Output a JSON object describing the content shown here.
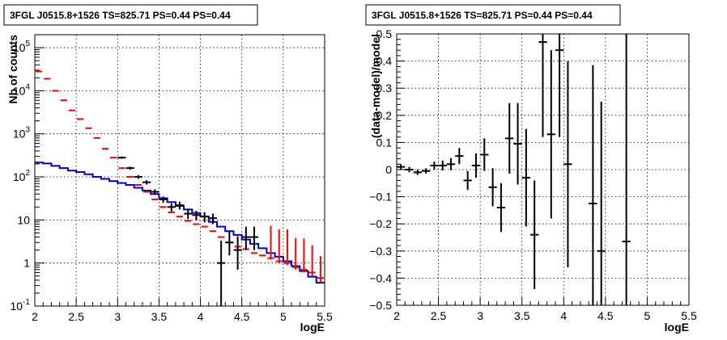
{
  "chart_data": [
    {
      "type": "line",
      "title": "3FGL J0515.8+1526 TS=825.71 PS=0.44 PS=0.44",
      "xlabel": "logE",
      "ylabel": "Nb of counts",
      "xlim": [
        2,
        5.5
      ],
      "ylim": [
        0.1,
        200000
      ],
      "ylog": true,
      "grid": true,
      "x_ticks": [
        "2",
        "2.5",
        "3",
        "3.5",
        "4",
        "4.5",
        "5",
        "5.5"
      ],
      "y_ticks": [
        {
          "v": 0.1,
          "base": "10",
          "exp": "-1"
        },
        {
          "v": 1,
          "base": "1",
          "exp": ""
        },
        {
          "v": 10,
          "base": "10",
          "exp": ""
        },
        {
          "v": 100,
          "base": "10",
          "exp": "2"
        },
        {
          "v": 1000,
          "base": "10",
          "exp": "3"
        },
        {
          "v": 10000,
          "base": "10",
          "exp": "4"
        },
        {
          "v": 100000,
          "base": "10",
          "exp": "5"
        }
      ],
      "bin_width": 0.1,
      "series": [
        {
          "style": "model-total",
          "color": "#ff0000",
          "x": [
            2.05,
            2.15,
            2.25,
            2.35,
            2.45,
            2.55,
            2.65,
            2.75,
            2.85,
            2.95,
            3.05,
            3.15,
            3.25,
            3.35,
            3.45,
            3.55,
            3.65,
            3.75,
            3.85,
            3.95,
            4.05,
            4.15,
            4.25,
            4.35,
            4.45,
            4.55,
            4.65,
            4.75,
            4.85,
            4.95,
            5.05,
            5.15,
            5.25,
            5.35,
            5.45
          ],
          "y": [
            28000,
            19000,
            10000,
            6000,
            3500,
            2200,
            1350,
            800,
            450,
            280,
            160,
            100,
            65,
            45,
            30,
            20,
            15,
            12,
            9.5,
            8,
            7,
            5.5,
            4,
            3,
            2.4,
            2.1,
            1.7,
            1.5,
            1.3,
            1.1,
            1.0,
            0.8,
            0.7,
            0.6,
            0.45
          ],
          "err_lo": [
            0,
            0,
            0,
            0,
            0,
            0,
            0,
            0,
            0,
            0,
            0,
            0,
            0,
            0,
            0,
            0,
            0,
            0,
            0,
            0,
            0,
            0,
            0,
            0,
            0,
            0,
            0,
            0,
            0.1,
            0.1,
            0.1,
            0.1,
            0.1,
            0.1,
            0.1
          ],
          "err_hi": [
            0,
            0,
            0,
            0,
            0,
            0,
            0,
            0,
            0,
            0,
            0,
            0,
            0,
            0,
            0,
            0,
            0,
            0,
            0,
            0,
            0,
            0,
            0,
            0,
            0,
            0,
            0,
            0,
            6,
            5,
            5,
            3,
            3,
            2,
            1
          ]
        },
        {
          "style": "model-component",
          "color": "#0000cc",
          "x": [
            2.05,
            2.15,
            2.25,
            2.35,
            2.45,
            2.55,
            2.65,
            2.75,
            2.85,
            2.95,
            3.05,
            3.15,
            3.25,
            3.35,
            3.45,
            3.55,
            3.65,
            3.75,
            3.85,
            3.95,
            4.05,
            4.15,
            4.25,
            4.35,
            4.45,
            4.55,
            4.65,
            4.75,
            4.85,
            4.95,
            5.05,
            5.15,
            5.25,
            5.35,
            5.45
          ],
          "y": [
            215,
            205,
            180,
            160,
            140,
            130,
            115,
            100,
            90,
            80,
            72,
            65,
            56,
            48,
            40,
            32,
            26,
            21,
            17.5,
            14.5,
            12,
            9,
            7,
            5.5,
            4.5,
            3.5,
            2.8,
            2.2,
            1.7,
            1.4,
            1.1,
            0.85,
            0.65,
            0.48,
            0.35
          ]
        },
        {
          "style": "data",
          "color": "#000000",
          "x": [
            3.05,
            3.15,
            3.25,
            3.35,
            3.45,
            3.55,
            3.65,
            3.75,
            3.85,
            3.95,
            4.05,
            4.15,
            4.25,
            4.35,
            4.45,
            4.55,
            4.65
          ],
          "y": [
            280,
            160,
            100,
            75,
            45,
            30,
            20,
            22,
            14,
            13,
            12,
            11,
            1,
            3,
            2,
            4,
            4
          ],
          "err_lo": [
            17,
            13,
            10,
            8.5,
            6.5,
            5,
            4.2,
            4.5,
            3.5,
            3.3,
            3.2,
            3,
            0.9,
            1.5,
            1.3,
            2,
            2
          ],
          "err_hi": [
            17,
            13,
            10,
            8.5,
            6.5,
            5,
            4.2,
            4.5,
            3.5,
            3.3,
            3.2,
            3,
            2.3,
            2.5,
            2.2,
            3,
            3
          ]
        }
      ]
    },
    {
      "type": "scatter",
      "title": "3FGL J0515.8+1526 TS=825.71 PS=0.44 PS=0.44",
      "xlabel": "logE",
      "ylabel": "(data-model)/model",
      "xlim": [
        2,
        5.5
      ],
      "ylim": [
        -0.5,
        0.5
      ],
      "grid": true,
      "x_ticks": [
        "2",
        "2.5",
        "3",
        "3.5",
        "4",
        "4.5",
        "5",
        "5.5"
      ],
      "y_ticks": [
        "-0.5",
        "-0.4",
        "-0.3",
        "-0.2",
        "-0.1",
        "0",
        "0.1",
        "0.2",
        "0.3",
        "0.4",
        "0.5"
      ],
      "y_tick_labels": [
        "−0.5",
        "−0.4",
        "−0.3",
        "−0.2",
        "−0.1",
        "0",
        "0.1",
        "0.2",
        "0.3",
        "0.4",
        "0.5"
      ],
      "bin_width": 0.1,
      "series": [
        {
          "style": "residuals",
          "color": "#000000",
          "x": [
            2.05,
            2.15,
            2.25,
            2.35,
            2.45,
            2.55,
            2.65,
            2.75,
            2.85,
            2.95,
            3.05,
            3.15,
            3.25,
            3.35,
            3.45,
            3.55,
            3.65,
            3.75,
            3.85,
            3.95,
            4.05,
            4.35,
            4.45,
            4.75
          ],
          "y": [
            0.01,
            0.0,
            -0.01,
            -0.005,
            0.015,
            0.015,
            0.02,
            0.05,
            -0.04,
            0.015,
            0.055,
            -0.065,
            -0.14,
            0.115,
            0.095,
            -0.03,
            -0.24,
            0.47,
            0.13,
            0.44,
            0.02,
            -0.125,
            -0.3,
            -0.265
          ],
          "err": [
            0.01,
            0.01,
            0.01,
            0.01,
            0.015,
            0.018,
            0.022,
            0.03,
            0.035,
            0.045,
            0.06,
            0.07,
            0.09,
            0.13,
            0.15,
            0.18,
            0.2,
            0.35,
            0.31,
            0.32,
            0.38,
            0.51,
            0.55,
            0.8
          ]
        }
      ]
    }
  ]
}
